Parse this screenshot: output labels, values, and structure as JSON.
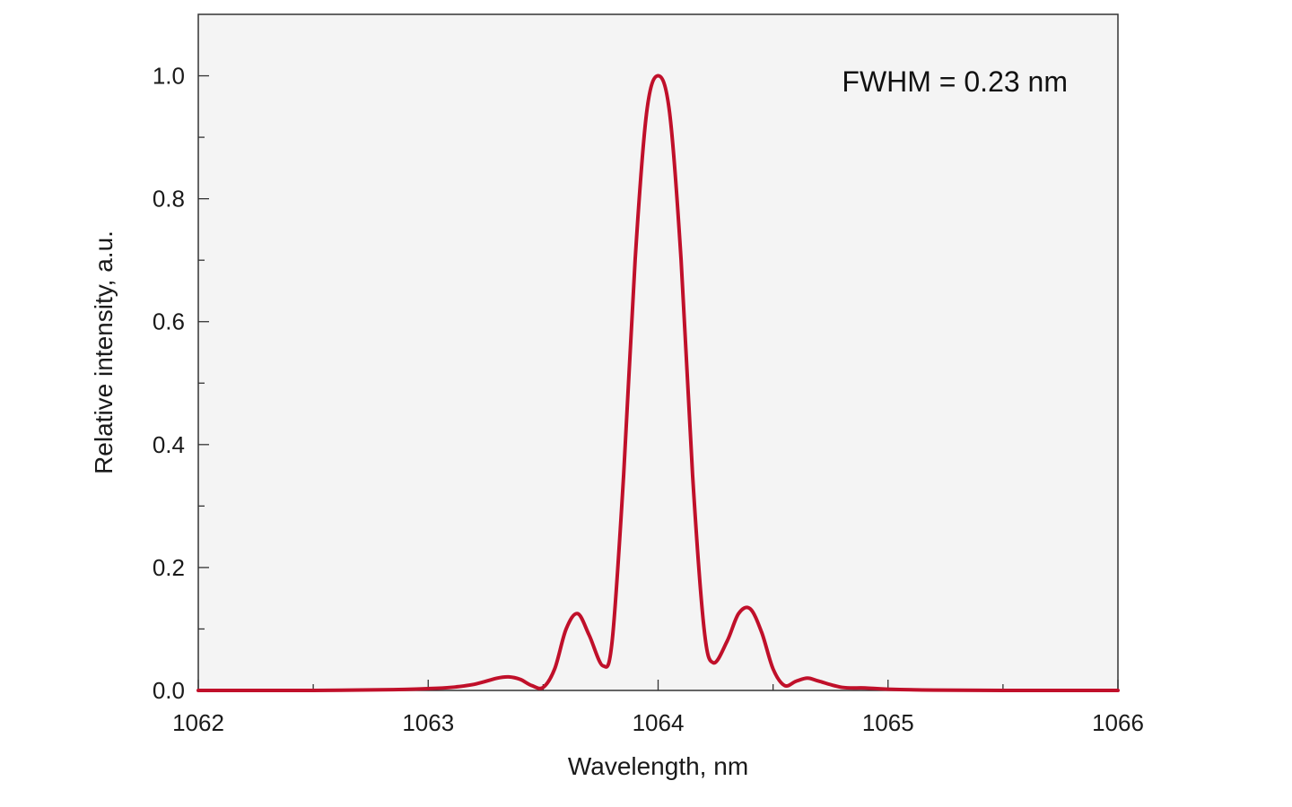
{
  "chart_data": {
    "type": "line",
    "title": "",
    "xlabel": "Wavelength, nm",
    "ylabel": "Relative intensity, a.u.",
    "xlim": [
      1062,
      1066
    ],
    "ylim": [
      0,
      1.1
    ],
    "x_ticks": [
      1062,
      1063,
      1064,
      1065,
      1066
    ],
    "x_tick_labels": [
      "1062",
      "1063",
      "1064",
      "1065",
      "1066"
    ],
    "y_ticks": [
      0,
      0.2,
      0.4,
      0.6,
      0.8,
      1.0
    ],
    "y_tick_labels": [
      "0.0",
      "0.2",
      "0.4",
      "0.6",
      "0.8",
      "1.0"
    ],
    "annotation": "FWHM = 0.23 nm",
    "annotation_position": "top-right",
    "grid": false,
    "legend": "none",
    "colors": {
      "line": "#c0102a",
      "plot_background": "#f4f4f4",
      "axes": "#333333"
    },
    "series": [
      {
        "x": [
          1062.0,
          1062.5,
          1062.8,
          1063.0,
          1063.1,
          1063.2,
          1063.3,
          1063.35,
          1063.4,
          1063.45,
          1063.5,
          1063.55,
          1063.6,
          1063.65,
          1063.7,
          1063.76,
          1063.8,
          1063.85,
          1063.9,
          1063.95,
          1064.0,
          1064.05,
          1064.1,
          1064.15,
          1064.2,
          1064.24,
          1064.3,
          1064.35,
          1064.4,
          1064.45,
          1064.5,
          1064.55,
          1064.6,
          1064.65,
          1064.7,
          1064.8,
          1064.9,
          1065.0,
          1065.2,
          1065.5,
          1066.0
        ],
        "y": [
          0.0,
          0.0,
          0.001,
          0.003,
          0.005,
          0.01,
          0.02,
          0.022,
          0.018,
          0.008,
          0.005,
          0.035,
          0.1,
          0.125,
          0.09,
          0.04,
          0.08,
          0.35,
          0.7,
          0.94,
          1.0,
          0.94,
          0.7,
          0.35,
          0.1,
          0.045,
          0.08,
          0.125,
          0.133,
          0.095,
          0.035,
          0.008,
          0.015,
          0.02,
          0.015,
          0.005,
          0.004,
          0.002,
          0.0005,
          0.0,
          0.0
        ]
      }
    ]
  }
}
